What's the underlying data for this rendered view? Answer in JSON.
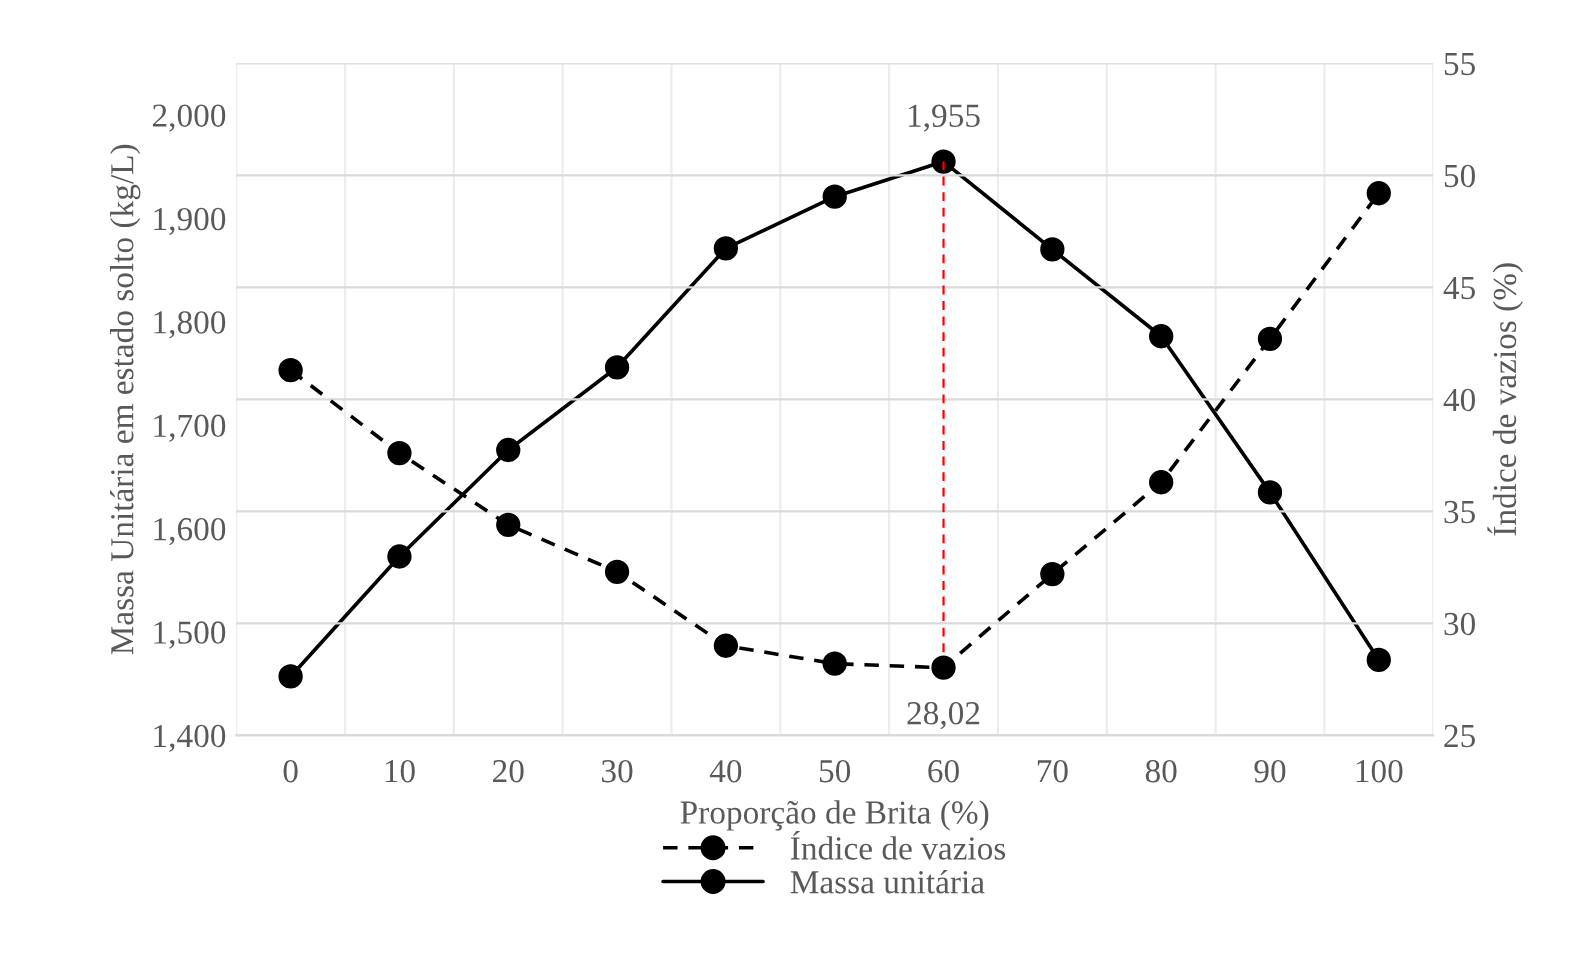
{
  "chart_data": {
    "type": "line",
    "xlabel": "Proporção de Brita (%)",
    "ylabel": "Massa Unitária em estado solto (kg/L)",
    "y2label": "Índice de vazios (%)",
    "categories": [
      "0",
      "10",
      "20",
      "30",
      "40",
      "50",
      "60",
      "70",
      "80",
      "90",
      "100"
    ],
    "series": [
      {
        "name": "Índice de vazios",
        "color": "#000000",
        "axis": "y2",
        "line_style": "dashed",
        "values": [
          41.3,
          37.6,
          34.4,
          32.3,
          29.0,
          28.2,
          28.02,
          32.2,
          36.3,
          42.7,
          49.2
        ]
      },
      {
        "name": "Massa unitária",
        "color": "#000000",
        "axis": "y",
        "line_style": "solid",
        "values": [
          1457,
          1573,
          1676,
          1756,
          1871,
          1921,
          1955,
          1870,
          1786,
          1635,
          1473
        ]
      }
    ],
    "ylim": [
      1400,
      2050
    ],
    "yticks": [
      {
        "value": 1400,
        "label": "1,400"
      },
      {
        "value": 1500,
        "label": "1,500"
      },
      {
        "value": 1600,
        "label": "1,600"
      },
      {
        "value": 1700,
        "label": "1,700"
      },
      {
        "value": 1800,
        "label": "1,800"
      },
      {
        "value": 1900,
        "label": "1,900"
      },
      {
        "value": 2000,
        "label": "2,000"
      }
    ],
    "y2lim": [
      25,
      55
    ],
    "y2ticks": [
      25,
      30,
      35,
      40,
      45,
      50,
      55
    ],
    "marker": "circle",
    "grid": true,
    "legend": "bottom",
    "ref_lines": [
      {
        "axis": "x",
        "value": "60",
        "color": "#ff0000",
        "line_style": "dashed"
      }
    ],
    "annotations": [
      {
        "text": "1,955",
        "x": "60",
        "y": 1955
      },
      "28,02"
    ]
  }
}
